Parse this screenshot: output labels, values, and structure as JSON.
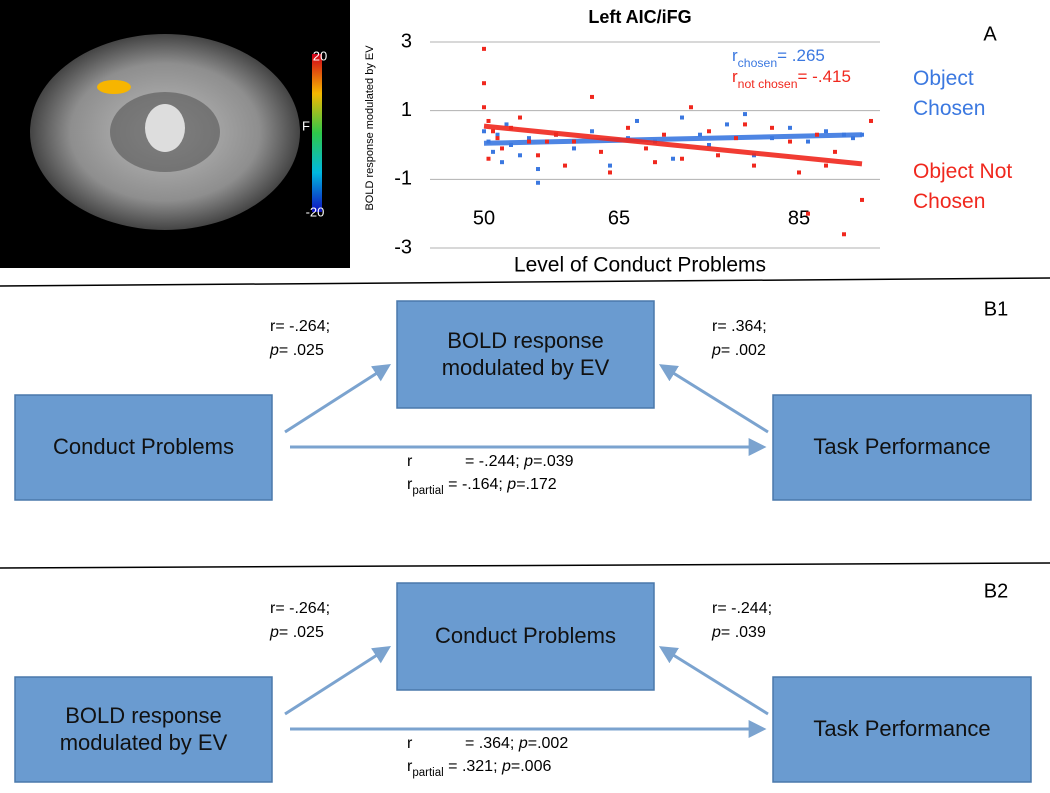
{
  "brain_image": {
    "colorbar_max": 20,
    "colorbar_label": "F",
    "colorbar_min": -20
  },
  "chart_data": {
    "type": "scatter",
    "title": "Left AIC/iFG",
    "panel_label": "A",
    "x_label": "Level of Conduct Problems",
    "y_label": "BOLD response modulated by EV",
    "xlim": [
      44,
      94
    ],
    "xticks": [
      50,
      65,
      85
    ],
    "ylim": [
      -3,
      3
    ],
    "yticks": [
      -3,
      -1,
      1,
      3
    ],
    "grid": true,
    "legend": "right",
    "series": [
      {
        "name": "Object Chosen",
        "color": "#3b78e0",
        "x": [
          50,
          50.5,
          51,
          51.5,
          52,
          52.5,
          53,
          54,
          55,
          56,
          56,
          58,
          60,
          62,
          64,
          66,
          67,
          69,
          71,
          72,
          74,
          75,
          77,
          79,
          80,
          82,
          84,
          86,
          88,
          90,
          91,
          92
        ],
        "values": [
          0.4,
          0.1,
          -0.2,
          0.3,
          -0.5,
          0.6,
          0.0,
          -0.3,
          0.2,
          -1.1,
          -0.7,
          0.3,
          -0.1,
          0.4,
          -0.6,
          0.2,
          0.7,
          0.1,
          -0.4,
          0.8,
          0.3,
          0.0,
          0.6,
          0.9,
          -0.3,
          0.2,
          0.5,
          0.1,
          0.4,
          0.3,
          0.2,
          0.3
        ],
        "fit": {
          "x": [
            50,
            92
          ],
          "y": [
            0.05,
            0.3
          ]
        },
        "annotation": {
          "symbol": "r",
          "subscript": "chosen",
          "text": "=   .265"
        }
      },
      {
        "name": "Object Not Chosen",
        "color": "#f0281e",
        "x": [
          50,
          50,
          50,
          50.5,
          51,
          51.5,
          52,
          50.5,
          53,
          54,
          55,
          56,
          58,
          59,
          60,
          62,
          63,
          64,
          66,
          68,
          70,
          72,
          73,
          75,
          76,
          78,
          80,
          82,
          84,
          85,
          86,
          87,
          89,
          90,
          92,
          93,
          88,
          79,
          69,
          57
        ],
        "values": [
          2.8,
          1.8,
          1.1,
          0.7,
          0.4,
          0.2,
          -0.1,
          -0.4,
          0.5,
          0.8,
          0.1,
          -0.3,
          0.3,
          -0.6,
          0.1,
          1.4,
          -0.2,
          -0.8,
          0.5,
          -0.1,
          0.3,
          -0.4,
          1.1,
          0.4,
          -0.3,
          0.2,
          -0.6,
          0.5,
          0.1,
          -0.8,
          -2.0,
          0.3,
          -0.2,
          -2.6,
          -1.6,
          0.7,
          -0.6,
          0.6,
          -0.5,
          0.1
        ],
        "fit": {
          "x": [
            50,
            92
          ],
          "y": [
            0.55,
            -0.55
          ]
        },
        "annotation": {
          "symbol": "r",
          "subscript": "not chosen",
          "text": "= -.415"
        }
      }
    ]
  },
  "diagrams": [
    {
      "label": "B1",
      "top": "BOLD response modulated by EV",
      "left": "Conduct Problems",
      "right": "Task Performance",
      "left_edge": {
        "r": "r= -.264;",
        "p": "p",
        "p_value": "=  .025"
      },
      "right_edge": {
        "r": "r= .364;",
        "p": "p",
        "p_value": "= .002"
      },
      "direct": {
        "r": "r",
        "r_value": "= -.244; ",
        "p": "p",
        "p_value": "=.039",
        "subscript": "partial",
        "r_partial_value": " = -.164; ",
        "p_partial_value": "=.172"
      }
    },
    {
      "label": "B2",
      "top": "Conduct Problems",
      "left": "BOLD response modulated by EV",
      "right": "Task Performance",
      "left_edge": {
        "r": "r= -.264;",
        "p": "p",
        "p_value": "=  .025"
      },
      "right_edge": {
        "r": "r= -.244;",
        "p": "p",
        "p_value": "= .039"
      },
      "direct": {
        "r": "r",
        "r_value": "= .364; ",
        "p": "p",
        "p_value": "=.002",
        "subscript": "partial",
        "r_partial_value": " = .321; ",
        "p_partial_value": "=.006"
      }
    }
  ]
}
